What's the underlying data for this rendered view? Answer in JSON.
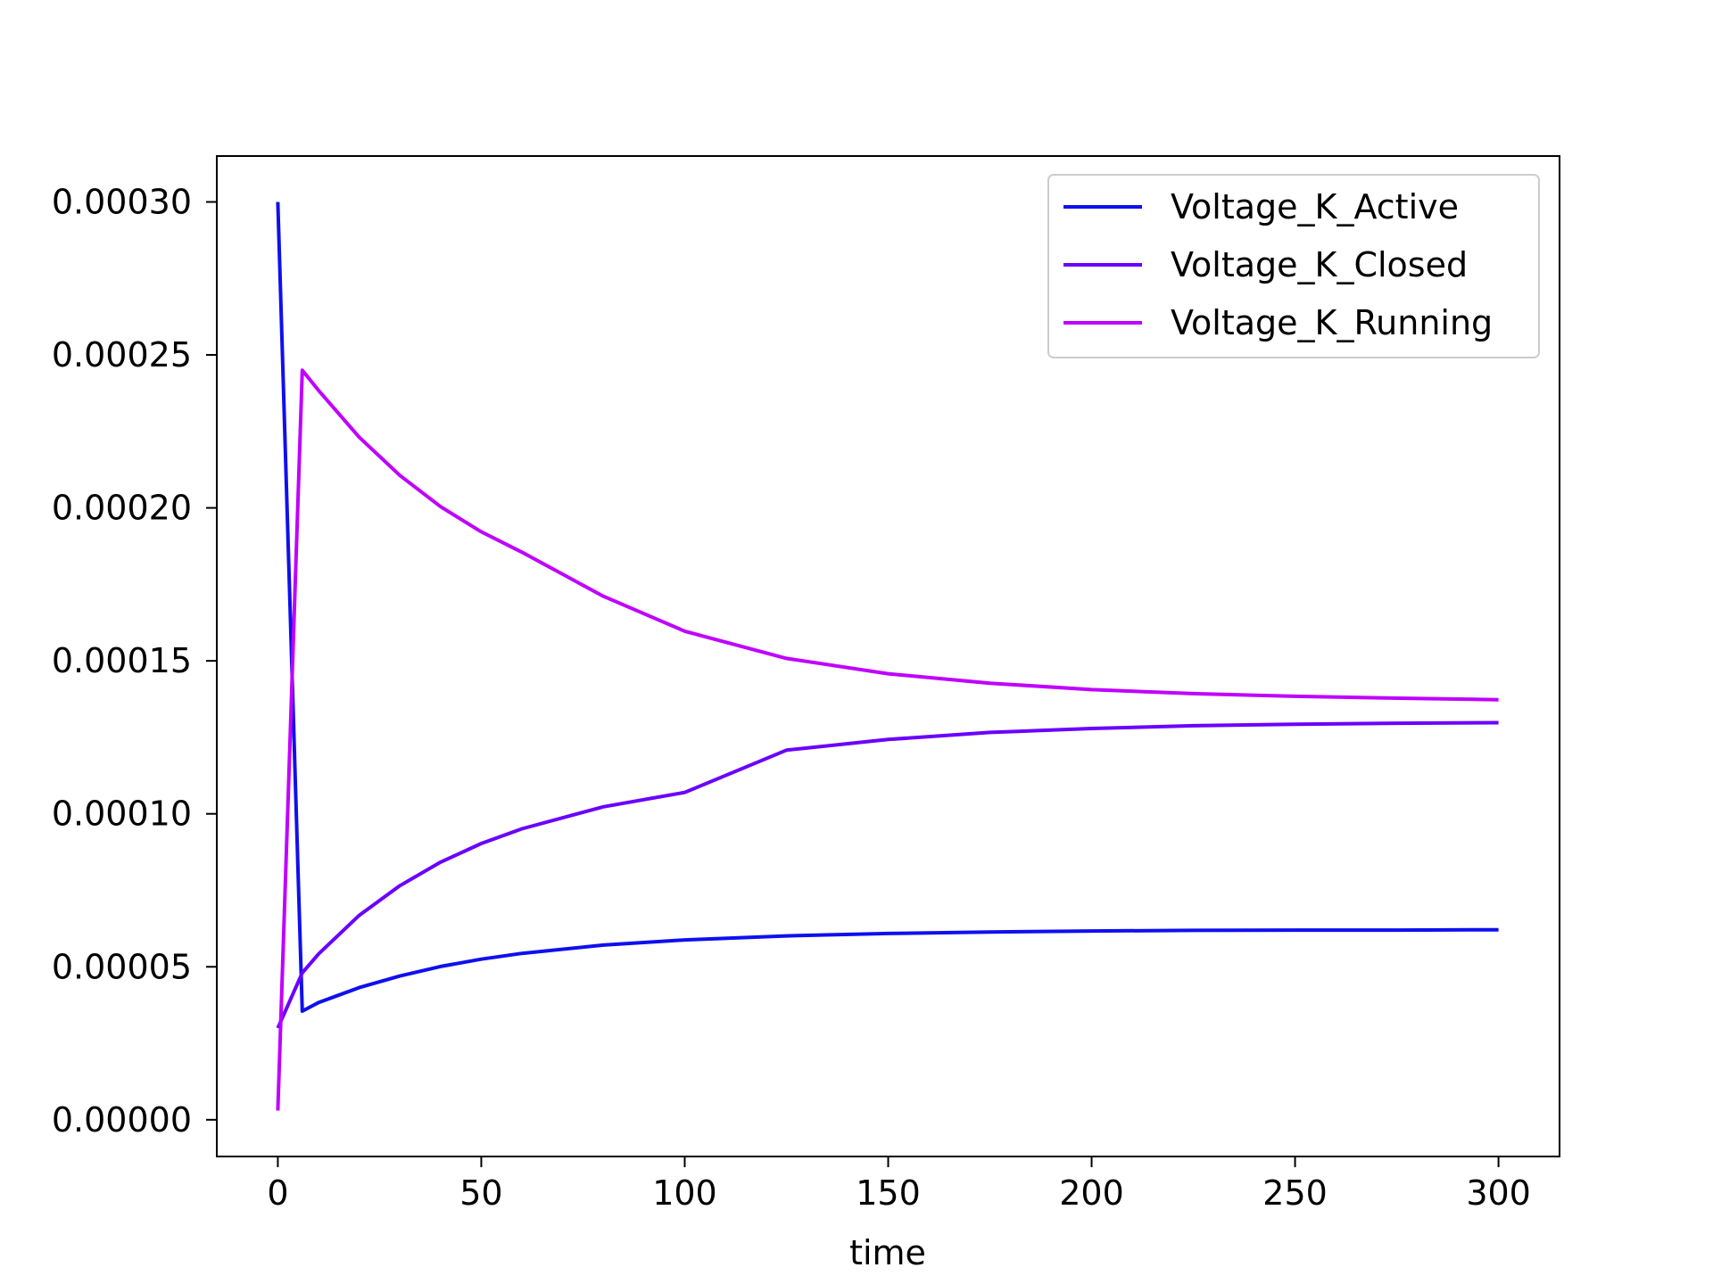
{
  "chart_data": {
    "type": "line",
    "xlabel": "time",
    "ylabel": "",
    "title": "",
    "xlim": [
      -15,
      315
    ],
    "ylim": [
      -1.2e-05,
      0.000315
    ],
    "xticks": [
      0,
      50,
      100,
      150,
      200,
      250,
      300
    ],
    "xtick_labels": [
      "0",
      "50",
      "100",
      "150",
      "200",
      "250",
      "300"
    ],
    "yticks": [
      0.0,
      5e-05,
      0.0001,
      0.00015,
      0.0002,
      0.00025,
      0.0003
    ],
    "ytick_labels": [
      "0.00000",
      "0.00005",
      "0.00010",
      "0.00015",
      "0.00020",
      "0.00025",
      "0.00030"
    ],
    "grid": false,
    "legend_position": "top-right",
    "series": [
      {
        "name": "Voltage_K_Active",
        "color": "#0f0fef",
        "x": [
          0,
          6,
          10,
          20,
          30,
          40,
          50,
          60,
          80,
          100,
          125,
          150,
          175,
          200,
          225,
          250,
          275,
          300
        ],
        "y": [
          0.0003,
          3.55e-05,
          3.83e-05,
          4.32e-05,
          4.7e-05,
          5.01e-05,
          5.25e-05,
          5.44e-05,
          5.71e-05,
          5.88e-05,
          6.01e-05,
          6.09e-05,
          6.14e-05,
          6.17e-05,
          6.19e-05,
          6.2e-05,
          6.2e-05,
          6.21e-05
        ]
      },
      {
        "name": "Voltage_K_Closed",
        "color": "#6a00ff",
        "x": [
          0,
          6,
          10,
          20,
          30,
          40,
          50,
          60,
          80,
          100,
          125,
          150,
          175,
          200,
          225,
          250,
          275,
          300
        ],
        "y": [
          3e-05,
          4.8e-05,
          5.42e-05,
          6.68e-05,
          7.65e-05,
          8.42e-05,
          9.03e-05,
          9.51e-05,
          0.0001023,
          0.000107,
          0.0001208,
          0.0001243,
          0.0001266,
          0.0001279,
          0.0001288,
          0.0001293,
          0.0001296,
          0.0001298
        ]
      },
      {
        "name": "Voltage_K_Running",
        "color": "#bf00ff",
        "x": [
          0,
          6,
          10,
          20,
          30,
          40,
          50,
          60,
          80,
          100,
          125,
          150,
          175,
          200,
          225,
          250,
          275,
          300
        ],
        "y": [
          3e-06,
          0.000245,
          0.0002384,
          0.0002231,
          0.0002106,
          0.0002004,
          0.0001922,
          0.0001855,
          0.0001711,
          0.0001597,
          0.0001508,
          0.0001458,
          0.0001427,
          0.0001406,
          0.0001393,
          0.0001384,
          0.0001378,
          0.0001373
        ]
      }
    ]
  }
}
